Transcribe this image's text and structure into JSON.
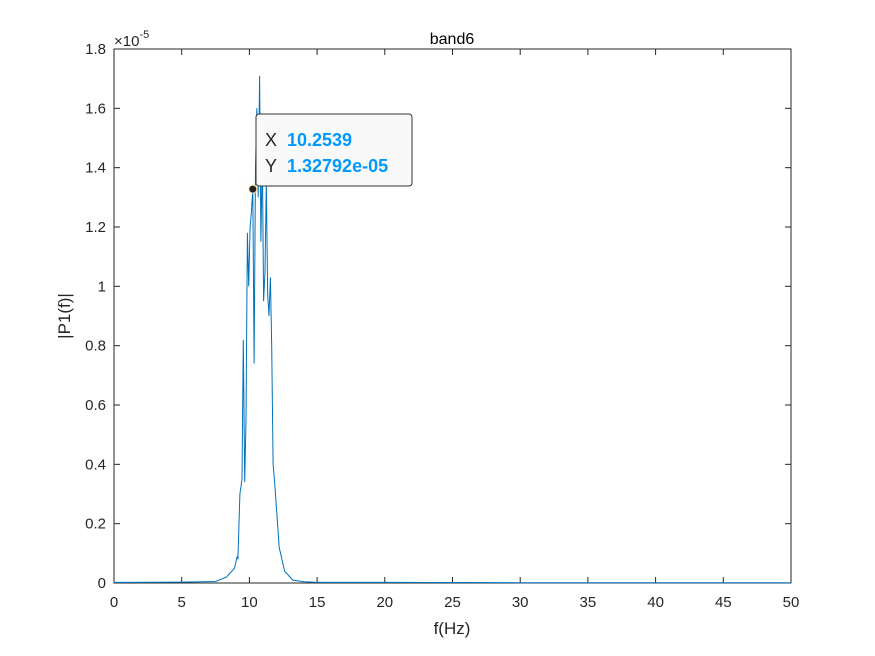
{
  "chart_data": {
    "type": "line",
    "title": "band6",
    "xlabel": "f(Hz)",
    "ylabel": "|P1(f)|",
    "xlim": [
      0,
      50
    ],
    "ylim": [
      0,
      1.8
    ],
    "y_exponent_base": "10",
    "y_exponent_power": "-5",
    "x_ticks": [
      0,
      5,
      10,
      15,
      20,
      25,
      30,
      35,
      40,
      45,
      50
    ],
    "y_ticks": [
      0,
      0.2,
      0.4,
      0.6,
      0.8,
      1,
      1.2,
      1.4,
      1.6,
      1.8
    ],
    "grid": false,
    "series": [
      {
        "color": "#0072BD",
        "x": [
          0,
          5,
          7.5,
          8.3,
          8.9,
          9.1,
          9.15,
          9.3,
          9.45,
          9.55,
          9.65,
          9.75,
          9.85,
          9.95,
          10.05,
          10.15,
          10.25,
          10.35,
          10.45,
          10.55,
          10.65,
          10.75,
          10.85,
          10.95,
          11.05,
          11.15,
          11.25,
          11.35,
          11.45,
          11.55,
          11.65,
          11.75,
          11.85,
          12.0,
          12.2,
          12.6,
          13.2,
          14,
          15,
          20,
          30,
          40,
          50
        ],
        "y": [
          0.002,
          0.003,
          0.005,
          0.02,
          0.05,
          0.09,
          0.08,
          0.3,
          0.35,
          0.82,
          0.34,
          0.55,
          1.18,
          1.0,
          1.2,
          1.25,
          1.33,
          0.74,
          1.4,
          1.6,
          1.3,
          1.71,
          1.15,
          1.45,
          0.95,
          1.05,
          1.35,
          0.97,
          0.9,
          1.03,
          0.8,
          0.4,
          0.35,
          0.25,
          0.12,
          0.04,
          0.01,
          0.004,
          0.002,
          0.002,
          0.001,
          0.001,
          0.001
        ]
      }
    ],
    "datatip": {
      "x_key": "X",
      "x_value": "10.2539",
      "y_key": "Y",
      "y_value": "1.32792e-05",
      "x": 10.2539,
      "y": 1.32792
    }
  },
  "colors": {
    "line": "#0072BD",
    "datatip_value": "#0099FF",
    "axes": "#262626"
  }
}
